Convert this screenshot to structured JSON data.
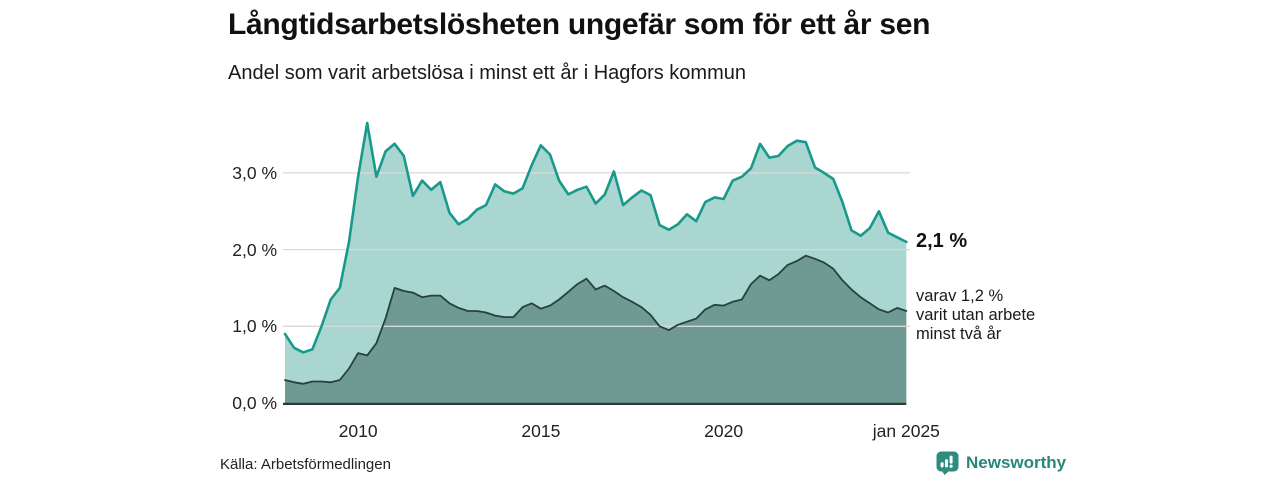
{
  "header": {
    "title": "Långtidsarbetslösheten ungefär som för ett år sen",
    "subtitle": "Andel som varit arbetslösa i minst ett år i Hagfors kommun"
  },
  "chart_data": {
    "type": "area",
    "title": "Långtidsarbetslösheten ungefär som för ett år sen",
    "subtitle": "Andel som varit arbetslösa i minst ett år i Hagfors kommun",
    "region": "Hagfors kommun",
    "x_unit": "decimal_year_quarterly",
    "x_start": 2008.0,
    "x_step": 0.25,
    "x_end": 2025.0,
    "ylim": [
      0,
      3.95
    ],
    "grid": true,
    "yticks": [
      {
        "value": 0.0,
        "label": "0,0 %"
      },
      {
        "value": 1.0,
        "label": "1,0 %"
      },
      {
        "value": 2.0,
        "label": "2,0 %"
      },
      {
        "value": 3.0,
        "label": "3,0 %"
      }
    ],
    "xticks": [
      {
        "t": 2010,
        "label": "2010"
      },
      {
        "t": 2015,
        "label": "2015"
      },
      {
        "t": 2020,
        "label": "2020"
      },
      {
        "t": 2025,
        "label": "jan 2025"
      }
    ],
    "series": [
      {
        "name": "Andel arbetslösa minst ett år",
        "stroke": "#18998b",
        "fill": "#a9d6d0",
        "stroke_width": 2.6,
        "values": [
          0.9,
          0.72,
          0.66,
          0.7,
          1.0,
          1.35,
          1.5,
          2.1,
          2.95,
          3.65,
          2.95,
          3.28,
          3.38,
          3.22,
          2.7,
          2.9,
          2.78,
          2.88,
          2.48,
          2.33,
          2.4,
          2.52,
          2.58,
          2.85,
          2.76,
          2.73,
          2.8,
          3.1,
          3.36,
          3.24,
          2.9,
          2.72,
          2.78,
          2.82,
          2.6,
          2.72,
          3.02,
          2.58,
          2.68,
          2.77,
          2.71,
          2.32,
          2.26,
          2.33,
          2.46,
          2.37,
          2.62,
          2.68,
          2.66,
          2.9,
          2.95,
          3.06,
          3.38,
          3.2,
          3.22,
          3.35,
          3.42,
          3.4,
          3.07,
          3.0,
          2.92,
          2.62,
          2.25,
          2.18,
          2.28,
          2.5,
          2.22,
          2.16,
          2.1
        ]
      },
      {
        "name": "varav utan arbete minst två år",
        "stroke": "#27413c",
        "fill": "#6f9a93",
        "stroke_width": 1.8,
        "values": [
          0.3,
          0.27,
          0.25,
          0.28,
          0.28,
          0.27,
          0.3,
          0.45,
          0.65,
          0.62,
          0.78,
          1.1,
          1.5,
          1.46,
          1.44,
          1.38,
          1.4,
          1.4,
          1.3,
          1.24,
          1.2,
          1.2,
          1.18,
          1.14,
          1.12,
          1.12,
          1.25,
          1.3,
          1.23,
          1.27,
          1.35,
          1.45,
          1.55,
          1.62,
          1.48,
          1.53,
          1.46,
          1.38,
          1.32,
          1.25,
          1.15,
          1.0,
          0.95,
          1.02,
          1.06,
          1.1,
          1.22,
          1.28,
          1.27,
          1.32,
          1.35,
          1.55,
          1.66,
          1.6,
          1.68,
          1.8,
          1.85,
          1.92,
          1.88,
          1.83,
          1.75,
          1.6,
          1.48,
          1.38,
          1.3,
          1.22,
          1.18,
          1.24,
          1.2
        ]
      }
    ],
    "annotations": {
      "latest_total": "2,1 %",
      "latest_two_year_lines": [
        "varav 1,2 %",
        "varit utan arbete",
        "minst två år"
      ]
    },
    "colors": {
      "grid": "#d9d9d9",
      "axis": "#2c3a38",
      "accent": "#18998b"
    },
    "legend_position": "right-of-line-end"
  },
  "footer": {
    "source": "Källa: Arbetsförmedlingen",
    "brand": "Newsworthy",
    "brand_color": "#27877b"
  }
}
